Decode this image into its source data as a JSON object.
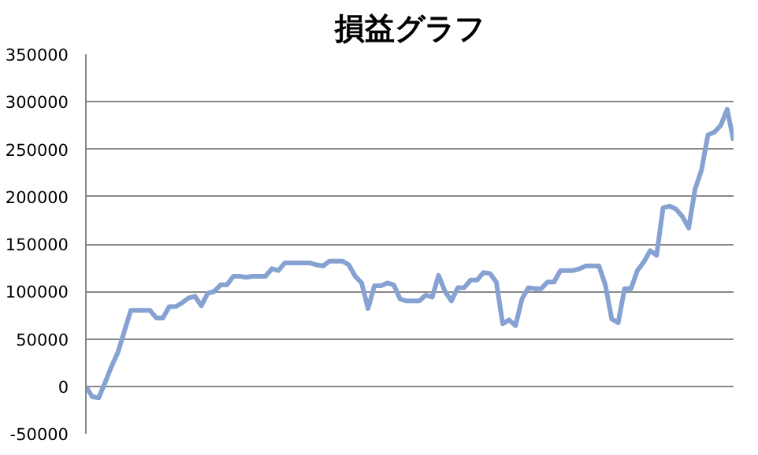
{
  "chart_data": {
    "type": "line",
    "title": "損益グラフ",
    "categories": [
      null,
      null,
      null,
      null,
      null,
      null,
      null,
      null,
      null,
      null,
      null,
      null,
      null,
      null,
      null,
      null,
      null,
      null,
      null,
      null,
      null,
      null,
      null,
      null,
      null,
      null,
      null,
      null,
      null,
      null,
      null,
      null,
      null,
      null,
      null,
      null,
      null,
      null,
      null,
      null,
      null,
      null,
      null,
      null,
      null,
      null,
      null,
      null,
      null,
      null,
      null,
      null,
      null,
      null,
      null,
      null,
      null,
      null,
      null,
      null,
      null,
      null,
      null,
      null,
      null,
      null,
      null,
      null,
      null,
      null,
      null,
      null,
      null,
      null,
      null,
      null,
      null,
      null,
      null,
      null,
      null,
      null,
      null,
      null,
      null,
      null,
      null,
      null,
      null,
      null,
      null,
      null,
      null,
      null,
      null,
      null,
      null,
      null,
      null,
      null,
      null,
      null
    ],
    "series": [
      {
        "color": "#86a2d2",
        "values": [
          0,
          -11000,
          -12000,
          4000,
          21000,
          36000,
          58000,
          80000,
          80000,
          80000,
          80000,
          72000,
          72000,
          84000,
          84000,
          88000,
          93000,
          95000,
          85000,
          98000,
          100000,
          107000,
          107000,
          116000,
          116000,
          115000,
          116000,
          116000,
          116000,
          124000,
          122000,
          130000,
          130000,
          130000,
          130000,
          130000,
          128000,
          127000,
          132000,
          132000,
          132000,
          128000,
          116000,
          109000,
          82000,
          106000,
          106000,
          109000,
          107000,
          92000,
          90000,
          90000,
          90000,
          96000,
          94000,
          117000,
          100000,
          90000,
          104000,
          104000,
          112000,
          112000,
          120000,
          119000,
          110000,
          66000,
          70000,
          64000,
          92000,
          104000,
          103000,
          103000,
          110000,
          110000,
          122000,
          122000,
          122000,
          124000,
          127000,
          127000,
          127000,
          107000,
          71000,
          67000,
          103000,
          103000,
          122000,
          131000,
          143000,
          138000,
          188000,
          190000,
          187000,
          179000,
          167000,
          208000,
          228000,
          265000,
          268000,
          275000,
          292000,
          259000
        ]
      }
    ],
    "ylim": [
      -50000,
      350000
    ],
    "yticks": [
      -50000,
      0,
      50000,
      100000,
      150000,
      200000,
      250000,
      300000,
      350000
    ],
    "grid": "y",
    "tick_labels": "y",
    "line_style": "solid",
    "marker": "none"
  }
}
